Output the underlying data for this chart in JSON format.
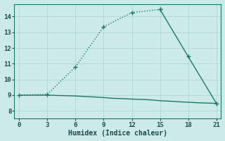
{
  "xlabel": "Humidex (Indice chaleur)",
  "background_color": "#cceae7",
  "grid_color": "#b0d8d4",
  "line_color": "#1a7a6a",
  "xlim": [
    -0.5,
    21.5
  ],
  "ylim": [
    7.5,
    14.8
  ],
  "xticks": [
    0,
    3,
    6,
    9,
    12,
    15,
    18,
    21
  ],
  "yticks": [
    8,
    9,
    10,
    11,
    12,
    13,
    14
  ],
  "series1_x": [
    0,
    3,
    6,
    9,
    12,
    15
  ],
  "series1_y": [
    9.0,
    9.05,
    10.8,
    13.35,
    14.25,
    14.45
  ],
  "series2_x": [
    0,
    3,
    6,
    9,
    10,
    11,
    12,
    13,
    14,
    15,
    16,
    17,
    18,
    19,
    20,
    21
  ],
  "series2_y": [
    9.0,
    9.0,
    8.95,
    8.85,
    8.8,
    8.78,
    8.75,
    8.73,
    8.7,
    8.65,
    8.62,
    8.58,
    8.55,
    8.52,
    8.5,
    8.48
  ],
  "series3_x": [
    15,
    18,
    21
  ],
  "series3_y": [
    14.45,
    11.45,
    8.48
  ],
  "marker_style": "+",
  "marker_size": 5,
  "linewidth": 1.0
}
